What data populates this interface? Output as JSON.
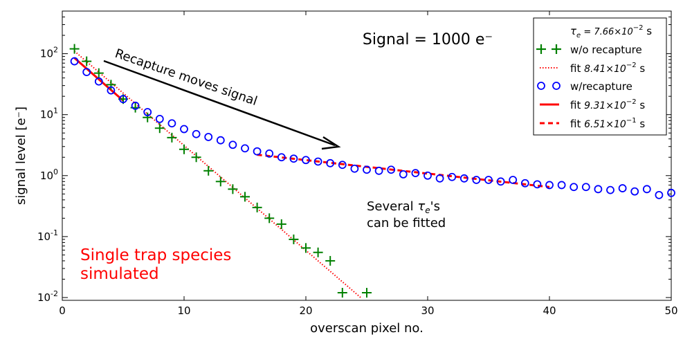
{
  "chart_data": {
    "type": "scatter",
    "title": "",
    "xlabel": "overscan pixel no.",
    "ylabel": "signal level [e⁻]",
    "xscale": "linear",
    "yscale": "log",
    "xlim": [
      0,
      50
    ],
    "ylim": [
      0.009,
      500
    ],
    "x_ticks": [
      0,
      10,
      20,
      30,
      40,
      50
    ],
    "y_ticks": [
      {
        "value": 0.01,
        "base": "10",
        "exp": "-2"
      },
      {
        "value": 0.1,
        "base": "10",
        "exp": "-1"
      },
      {
        "value": 1,
        "base": "10",
        "exp": "0"
      },
      {
        "value": 10,
        "base": "10",
        "exp": "1"
      },
      {
        "value": 100,
        "base": "10",
        "exp": "2"
      }
    ],
    "legend_position": "top-right",
    "series": [
      {
        "name": "w/o recapture",
        "marker": "plus",
        "color": "#008000",
        "x": [
          1,
          2,
          3,
          4,
          5,
          6,
          7,
          8,
          9,
          10,
          11,
          12,
          13,
          14,
          15,
          16,
          17,
          18,
          19,
          20,
          21,
          22,
          23,
          25
        ],
        "y": [
          120,
          75,
          48,
          31,
          18,
          13,
          9,
          6,
          4.2,
          2.7,
          2.0,
          1.2,
          0.8,
          0.6,
          0.45,
          0.3,
          0.2,
          0.16,
          0.09,
          0.065,
          0.055,
          0.04,
          0.012,
          0.012
        ]
      },
      {
        "name": "fit 8.41×10⁻² s",
        "line_style": "dotted",
        "color": "#ff0000",
        "x": [
          1,
          24.5
        ],
        "y": [
          110,
          0.01
        ]
      },
      {
        "name": "w/recapture",
        "marker": "circle-open",
        "color": "#0000ff",
        "x": [
          1,
          2,
          3,
          4,
          5,
          6,
          7,
          8,
          9,
          10,
          11,
          12,
          13,
          14,
          15,
          16,
          17,
          18,
          19,
          20,
          21,
          22,
          23,
          24,
          25,
          26,
          27,
          28,
          29,
          30,
          31,
          32,
          33,
          34,
          35,
          36,
          37,
          38,
          39,
          40,
          41,
          42,
          43,
          44,
          45,
          46,
          47,
          48,
          49,
          50
        ],
        "y": [
          75,
          50,
          35,
          25,
          18,
          14,
          11,
          8.5,
          7.2,
          5.8,
          4.8,
          4.3,
          3.8,
          3.2,
          2.8,
          2.5,
          2.3,
          2.0,
          1.9,
          1.8,
          1.7,
          1.6,
          1.5,
          1.3,
          1.25,
          1.2,
          1.25,
          1.05,
          1.1,
          1.0,
          0.9,
          0.95,
          0.9,
          0.85,
          0.85,
          0.8,
          0.85,
          0.75,
          0.72,
          0.7,
          0.7,
          0.65,
          0.65,
          0.6,
          0.58,
          0.62,
          0.55,
          0.6,
          0.48,
          0.52
        ]
      },
      {
        "name": "fit 9.31×10⁻² s",
        "line_style": "solid",
        "color": "#ff0000",
        "x": [
          1,
          5
        ],
        "y": [
          85,
          17
        ]
      },
      {
        "name": "fit 6.51×10⁻¹ s",
        "line_style": "dashed",
        "color": "#ff0000",
        "x": [
          16,
          40
        ],
        "y": [
          2.2,
          0.65
        ]
      }
    ],
    "legend_header": "τe = 7.66×10⁻² s",
    "annotations": {
      "signal": "Signal = 1000 e⁻",
      "recapture": "Recapture moves signal",
      "several_line1": "Several τe's",
      "several_line2": "can be fitted",
      "single_line1": "Single trap species",
      "single_line2": "simulated"
    },
    "legend": {
      "header_prefix": "τ",
      "header_sub": "e",
      "header_value": " = 7.66×10",
      "header_exp": "−2",
      "header_unit": " s",
      "items": [
        {
          "label": "w/o recapture"
        },
        {
          "label_prefix": "fit ",
          "value": "8.41×10",
          "exp": "−2",
          "unit": " s"
        },
        {
          "label": "w/recapture"
        },
        {
          "label_prefix": "fit ",
          "value": "9.31×10",
          "exp": "−2",
          "unit": " s"
        },
        {
          "label_prefix": "fit ",
          "value": "6.51×10",
          "exp": "−1",
          "unit": " s"
        }
      ]
    },
    "colors": {
      "green": "#008000",
      "blue": "#0000ff",
      "red": "#ff0000",
      "arrow": "#000000"
    }
  }
}
